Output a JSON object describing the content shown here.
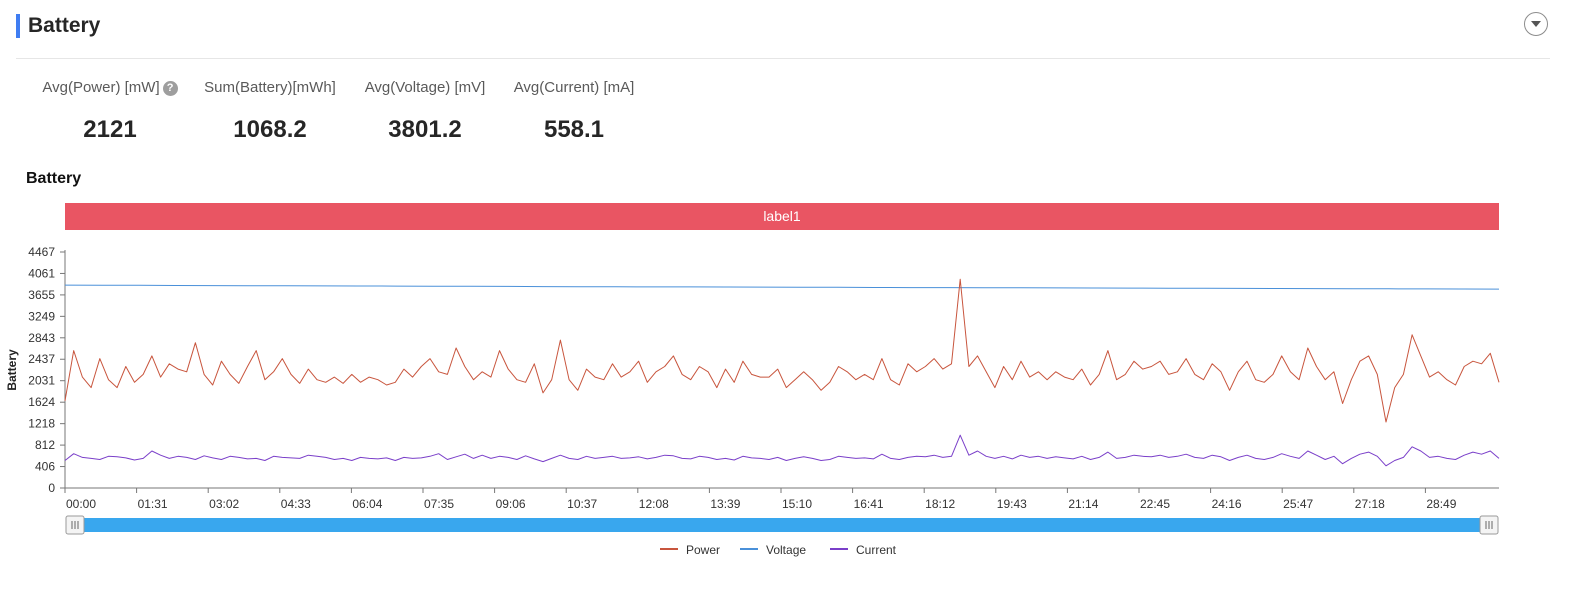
{
  "header": {
    "title": "Battery"
  },
  "stats": [
    {
      "label": "Avg(Power) [mW]",
      "value": "2121",
      "help": "?"
    },
    {
      "label": "Sum(Battery)[mWh]",
      "value": "1068.2"
    },
    {
      "label": "Avg(Voltage) [mV]",
      "value": "3801.2"
    },
    {
      "label": "Avg(Current) [mA]",
      "value": "558.1"
    }
  ],
  "section": {
    "title": "Battery"
  },
  "chart_data": {
    "type": "line",
    "title": "",
    "band_label": "label1",
    "band_color": "#e95563",
    "ylabel": "Battery",
    "xlabel": "",
    "ylim": [
      0,
      4467
    ],
    "y_ticks": [
      "0",
      "406",
      "812",
      "1218",
      "1624",
      "2031",
      "2437",
      "2843",
      "3249",
      "3655",
      "4061",
      "4467"
    ],
    "x_ticks": [
      "00:00",
      "01:31",
      "03:02",
      "04:33",
      "06:04",
      "07:35",
      "09:06",
      "10:37",
      "12:08",
      "13:39",
      "15:10",
      "16:41",
      "18:12",
      "19:43",
      "21:14",
      "22:45",
      "24:16",
      "25:47",
      "27:18",
      "28:49"
    ],
    "grid": false,
    "legend_position": "bottom",
    "series": [
      {
        "name": "Power",
        "color": "#c8553d",
        "values": [
          1650,
          2600,
          2100,
          1900,
          2450,
          2050,
          1900,
          2300,
          2000,
          2150,
          2500,
          2100,
          2350,
          2250,
          2200,
          2750,
          2150,
          1950,
          2400,
          2150,
          1980,
          2300,
          2600,
          2050,
          2200,
          2450,
          2150,
          1980,
          2250,
          2050,
          2000,
          2100,
          1980,
          2150,
          2000,
          2100,
          2050,
          1950,
          2000,
          2250,
          2100,
          2300,
          2450,
          2200,
          2150,
          2650,
          2300,
          2050,
          2200,
          2100,
          2600,
          2250,
          2050,
          2000,
          2350,
          1800,
          2050,
          2800,
          2050,
          1850,
          2250,
          2100,
          2050,
          2350,
          2100,
          2200,
          2400,
          2000,
          2200,
          2300,
          2500,
          2150,
          2050,
          2300,
          2200,
          1900,
          2250,
          2000,
          2400,
          2150,
          2100,
          2100,
          2250,
          1900,
          2050,
          2200,
          2050,
          1850,
          2000,
          2300,
          2200,
          2050,
          2150,
          2050,
          2450,
          2050,
          1950,
          2350,
          2200,
          2300,
          2450,
          2250,
          2350,
          3950,
          2300,
          2500,
          2200,
          1900,
          2300,
          2050,
          2400,
          2100,
          2200,
          2050,
          2200,
          2100,
          2050,
          2250,
          1950,
          2150,
          2600,
          2050,
          2150,
          2400,
          2250,
          2300,
          2400,
          2150,
          2200,
          2450,
          2150,
          2050,
          2350,
          2200,
          1850,
          2200,
          2400,
          2050,
          2000,
          2150,
          2500,
          2200,
          2050,
          2650,
          2300,
          2050,
          2200,
          1600,
          2050,
          2400,
          2500,
          2150,
          1250,
          1900,
          2150,
          2900,
          2500,
          2100,
          2200,
          2050,
          1950,
          2300,
          2400,
          2350,
          2550,
          2000
        ]
      },
      {
        "name": "Voltage",
        "color": "#4a90d9",
        "values": [
          3840,
          3838,
          3836,
          3833,
          3831,
          3829,
          3827,
          3825,
          3823,
          3821,
          3819,
          3817,
          3815,
          3813,
          3811,
          3809,
          3807,
          3806,
          3804,
          3802,
          3800,
          3798,
          3796,
          3794,
          3793,
          3791,
          3789,
          3787,
          3785,
          3783,
          3781,
          3779,
          3778,
          3776,
          3774,
          3772,
          3770,
          3768,
          3766,
          3764
        ]
      },
      {
        "name": "Current",
        "color": "#7a3fc9",
        "values": [
          520,
          650,
          580,
          560,
          540,
          600,
          590,
          570,
          530,
          560,
          700,
          620,
          560,
          600,
          580,
          540,
          610,
          570,
          540,
          600,
          580,
          550,
          560,
          520,
          600,
          580,
          570,
          560,
          620,
          600,
          580,
          540,
          560,
          520,
          580,
          560,
          550,
          570,
          520,
          580,
          560,
          570,
          600,
          650,
          540,
          590,
          640,
          560,
          620,
          560,
          600,
          580,
          540,
          610,
          550,
          500,
          560,
          620,
          560,
          540,
          600,
          560,
          580,
          600,
          560,
          570,
          590,
          550,
          580,
          620,
          610,
          560,
          550,
          600,
          580,
          540,
          560,
          530,
          600,
          570,
          560,
          540,
          580,
          520,
          560,
          590,
          560,
          520,
          540,
          600,
          580,
          560,
          570,
          550,
          640,
          560,
          540,
          580,
          600,
          590,
          620,
          580,
          600,
          1000,
          620,
          700,
          600,
          560,
          600,
          550,
          620,
          580,
          600,
          560,
          590,
          570,
          550,
          600,
          540,
          580,
          680,
          560,
          580,
          620,
          600,
          590,
          620,
          580,
          600,
          640,
          580,
          560,
          620,
          590,
          520,
          580,
          620,
          560,
          540,
          580,
          650,
          600,
          560,
          700,
          620,
          540,
          600,
          460,
          560,
          640,
          680,
          600,
          420,
          520,
          580,
          780,
          700,
          580,
          600,
          560,
          540,
          620,
          680,
          640,
          700,
          560
        ]
      }
    ]
  }
}
